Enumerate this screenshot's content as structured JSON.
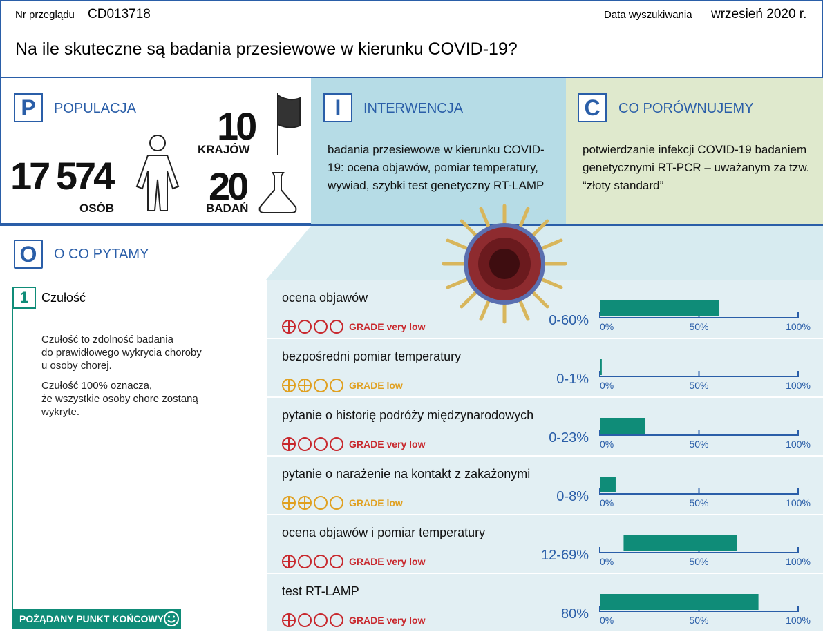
{
  "header": {
    "review_label": "Nr przeglądu",
    "review_id": "CD013718",
    "search_label": "Data wyszukiwania",
    "search_date": "wrzesień 2020 r.",
    "title": "Na ile skuteczne są badania przesiewowe w kierunku COVID-19?"
  },
  "population": {
    "letter": "P",
    "heading": "POPULACJA",
    "people": "17 574",
    "people_label": "OSÓB",
    "countries": "10",
    "countries_label": "KRAJÓW",
    "studies": "20",
    "studies_label": "BADAŃ"
  },
  "intervention": {
    "letter": "I",
    "heading": "INTERWENCJA",
    "text": "badania przesiewowe w kierunku COVID-19: ocena objawów, pomiar temperatury, wywiad, szybki test genetyczny RT-LAMP"
  },
  "comparison": {
    "letter": "C",
    "heading": "CO PORÓWNUJEMY",
    "text": "potwierdzanie infekcji COVID-19 badaniem genetycznymi RT-PCR – uważanym za tzw. “złoty standard”"
  },
  "outcome": {
    "letter": "O",
    "heading": "O CO PYTAMY",
    "number": "1",
    "name": "Czułość",
    "paragraphs": [
      [
        "Czułość to zdolność badania",
        "do prawidłowego wykrycia choroby",
        "u osoby chorej."
      ],
      [
        "Czułość 100% oznacza,",
        "że wszystkie osoby chore zostaną",
        "wykryte."
      ]
    ],
    "footer": "POŻĄDANY PUNKT KOŃCOWY"
  },
  "chart_data": {
    "type": "range-bar",
    "xlim": [
      0,
      100
    ],
    "xticks": [
      {
        "value": 0,
        "label": "0%"
      },
      {
        "value": 50,
        "label": "50%"
      },
      {
        "value": 100,
        "label": "100%"
      }
    ],
    "color": "#0f8c78",
    "rows": [
      {
        "name": "ocena objawów",
        "low": 0,
        "high": 60,
        "range_label": "0-60%",
        "grade": "GRADE very low",
        "certainty": 1
      },
      {
        "name": "bezpośredni pomiar temperatury",
        "low": 0,
        "high": 1,
        "range_label": "0-1%",
        "grade": "GRADE low",
        "certainty": 2
      },
      {
        "name": "pytanie o historię podróży międzynarodowych",
        "low": 0,
        "high": 23,
        "range_label": "0-23%",
        "grade": "GRADE very low",
        "certainty": 1
      },
      {
        "name": "pytanie o narażenie na kontakt z zakażonymi",
        "low": 0,
        "high": 8,
        "range_label": "0-8%",
        "grade": "GRADE low",
        "certainty": 2
      },
      {
        "name": "ocena objawów i pomiar temperatury",
        "low": 12,
        "high": 69,
        "range_label": "12-69%",
        "grade": "GRADE very low",
        "certainty": 1
      },
      {
        "name": "test RT-LAMP",
        "low": 0,
        "high": 80,
        "range_label": "80%",
        "grade": "GRADE very low",
        "certainty": 1
      }
    ]
  }
}
